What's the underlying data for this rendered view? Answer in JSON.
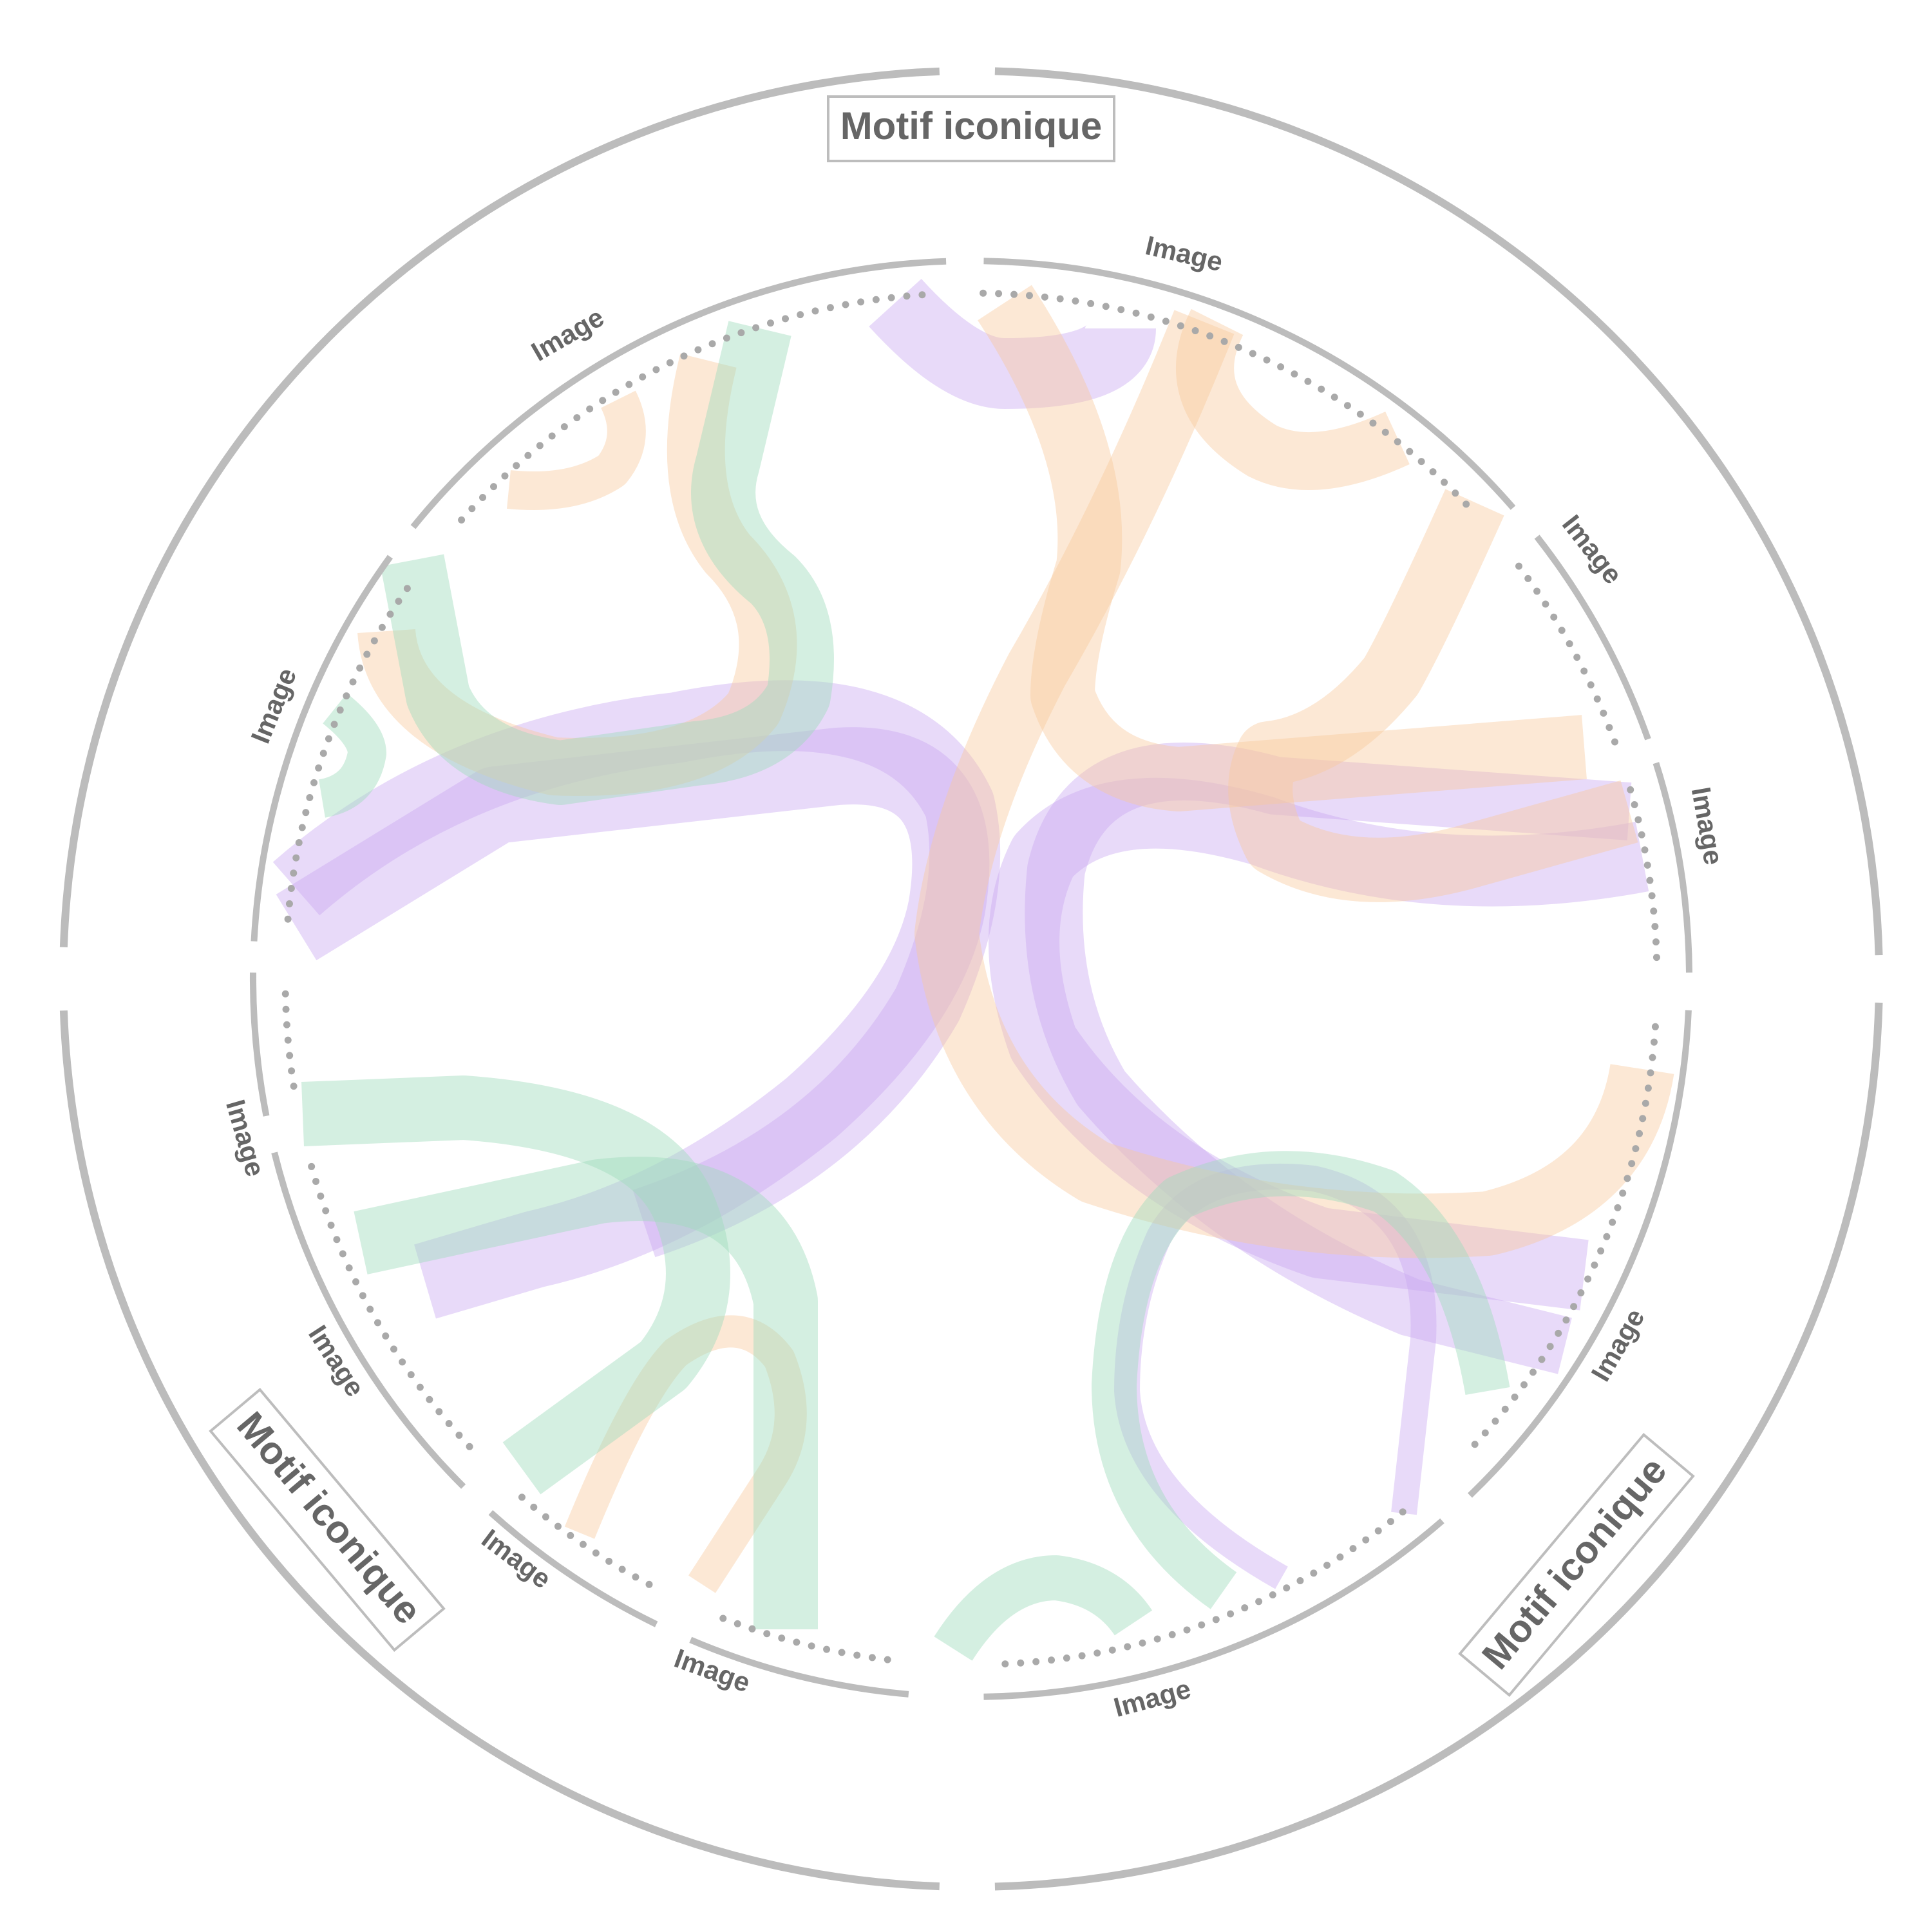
{
  "diagram": {
    "groups": [
      {
        "label": "Motif iconique"
      },
      {
        "label": "Motif iconique"
      },
      {
        "label": "Motif iconique"
      }
    ],
    "segments": [
      {
        "label": "Image"
      },
      {
        "label": "Image"
      },
      {
        "label": "Image"
      },
      {
        "label": "Image"
      },
      {
        "label": "Image"
      },
      {
        "label": "Image"
      },
      {
        "label": "Image"
      },
      {
        "label": "Image"
      },
      {
        "label": "Image"
      },
      {
        "label": "Image"
      }
    ],
    "colors": {
      "ring": "#bcbcbc",
      "dots": "#a9a9a9",
      "label_text": "#666666",
      "violet": "#c9a8f0",
      "peach": "#f7c89b",
      "mint": "#9fdcbc"
    }
  }
}
